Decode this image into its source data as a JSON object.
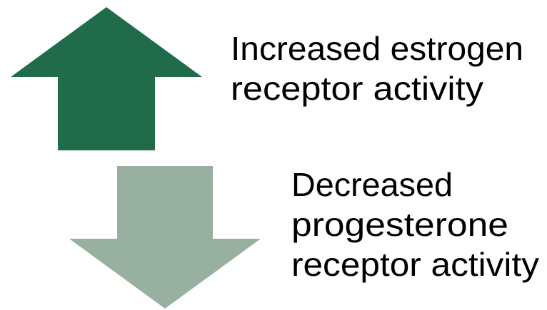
{
  "items": [
    {
      "lines": [
        "Increased estrogen",
        "receptor activity"
      ]
    },
    {
      "lines": [
        "Decreased",
        "progesterone",
        "receptor activity"
      ]
    }
  ]
}
